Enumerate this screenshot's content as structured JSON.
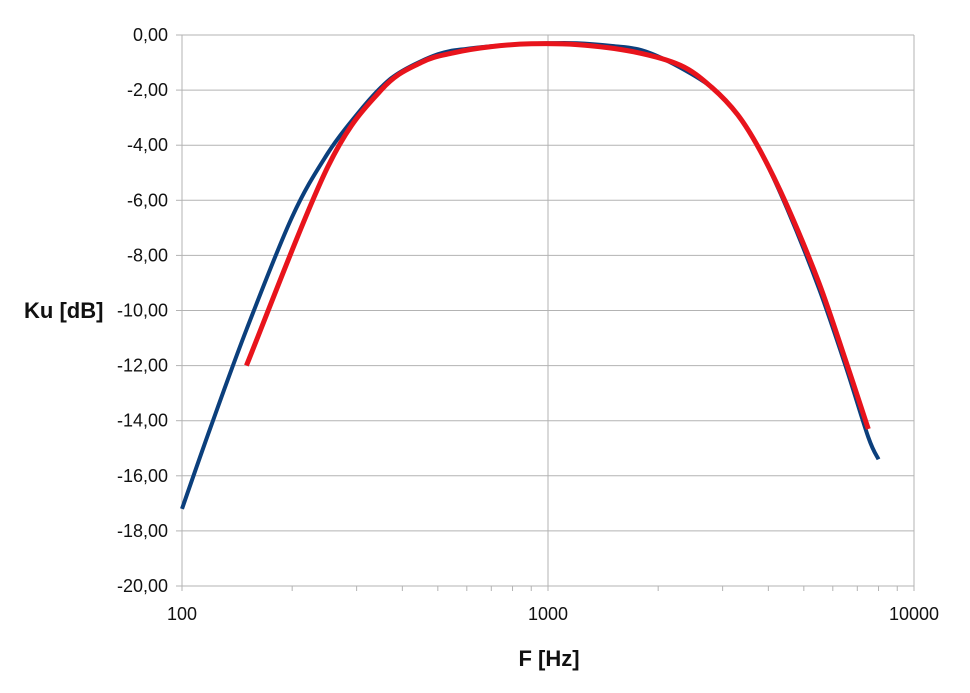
{
  "chart_data": {
    "type": "line",
    "title": "",
    "xlabel": "F [Hz]",
    "ylabel": "Ku [dB]",
    "x_scale": "log",
    "xlim": [
      100,
      10000
    ],
    "ylim": [
      -20,
      0
    ],
    "grid": true,
    "x_ticks": [
      100,
      1000,
      10000
    ],
    "x_tick_labels": [
      "100",
      "1000",
      "10000"
    ],
    "y_ticks": [
      0,
      -2,
      -4,
      -6,
      -8,
      -10,
      -12,
      -14,
      -16,
      -18,
      -20
    ],
    "y_tick_labels": [
      "0,00",
      "-2,00",
      "-4,00",
      "-6,00",
      "-8,00",
      "-10,00",
      "-12,00",
      "-14,00",
      "-16,00",
      "-18,00",
      "-20,00"
    ],
    "series": [
      {
        "color": "#0b3f7c",
        "x": [
          100,
          120,
          150,
          200,
          250,
          300,
          350,
          400,
          500,
          600,
          800,
          1000,
          1200,
          1500,
          1800,
          2200,
          2800,
          3300,
          3800,
          4500,
          5500,
          6500,
          7500,
          8000
        ],
        "y": [
          -17.2,
          -14.2,
          -10.7,
          -6.6,
          -4.3,
          -2.9,
          -1.9,
          -1.3,
          -0.7,
          -0.5,
          -0.35,
          -0.3,
          -0.3,
          -0.4,
          -0.55,
          -1.05,
          -1.9,
          -2.9,
          -4.2,
          -6.3,
          -9.2,
          -12.0,
          -14.6,
          -15.4
        ]
      },
      {
        "color": "#e8141c",
        "x": [
          150,
          250,
          350,
          450,
          550,
          700,
          900,
          1200,
          1700,
          2300,
          2800,
          3300,
          3800,
          4500,
          5500,
          6500,
          7500
        ],
        "y": [
          -12.0,
          -4.8,
          -2.0,
          -1.0,
          -0.65,
          -0.42,
          -0.32,
          -0.35,
          -0.6,
          -1.1,
          -1.9,
          -2.9,
          -4.2,
          -6.2,
          -9.0,
          -11.8,
          -14.3
        ]
      }
    ]
  }
}
